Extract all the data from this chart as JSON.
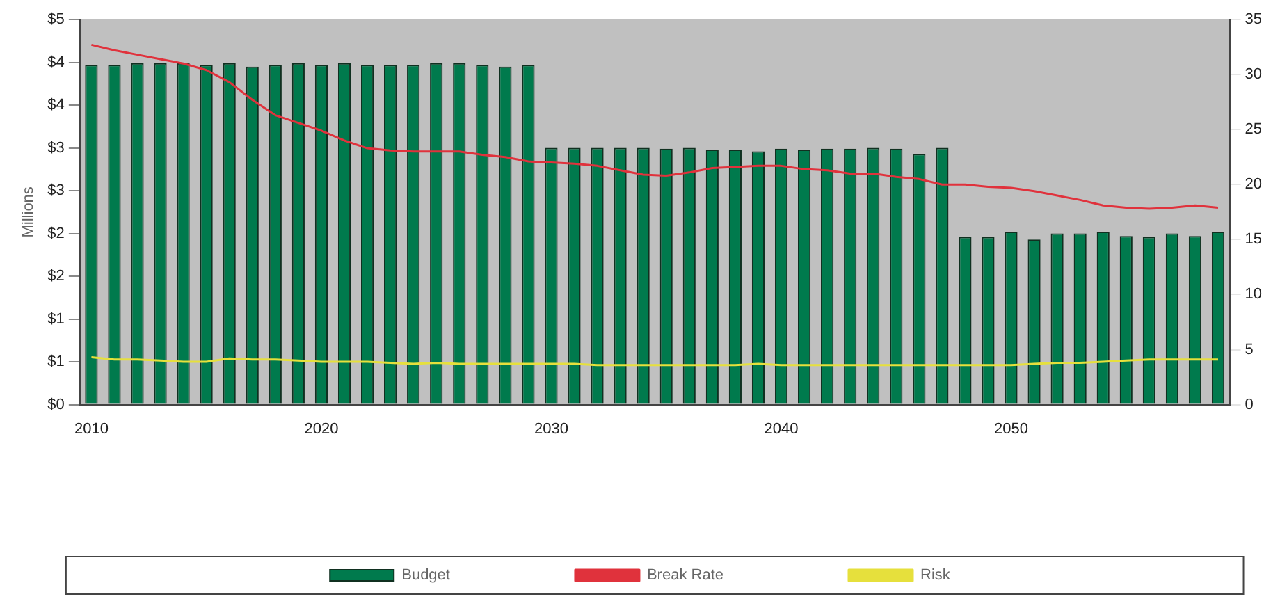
{
  "chart_data": {
    "type": "bar",
    "ylabel": "Millions",
    "categories": [
      "2010",
      null,
      null,
      null,
      null,
      null,
      null,
      null,
      null,
      null,
      "2020",
      null,
      null,
      null,
      null,
      null,
      null,
      null,
      null,
      null,
      "2030",
      null,
      null,
      null,
      null,
      null,
      null,
      null,
      null,
      null,
      "2040",
      null,
      null,
      null,
      null,
      null,
      null,
      null,
      null,
      null,
      "2050",
      null,
      null,
      null,
      null,
      null,
      null,
      null,
      null,
      null
    ],
    "series": [
      {
        "name": "Budget",
        "color": "#007a4d",
        "values": [
          3.97,
          3.97,
          3.99,
          3.99,
          3.99,
          3.97,
          3.99,
          3.95,
          3.97,
          3.99,
          3.97,
          3.99,
          3.97,
          3.97,
          3.97,
          3.99,
          3.99,
          3.97,
          3.95,
          3.97,
          3.0,
          3.0,
          3.0,
          3.0,
          3.0,
          2.99,
          3.0,
          2.98,
          2.98,
          2.96,
          2.99,
          2.98,
          2.99,
          2.99,
          3.0,
          2.99,
          2.93,
          3.0,
          1.96,
          1.96,
          2.02,
          1.93,
          2.0,
          2.0,
          2.02,
          1.97,
          1.96,
          2.0,
          1.97,
          2.02
        ]
      },
      {
        "name": "Break Rate",
        "type": "line",
        "axis": "y2",
        "color": "#e0323c",
        "values": [
          32.7,
          32.2,
          31.8,
          31.4,
          31.0,
          30.4,
          29.3,
          27.7,
          26.3,
          25.6,
          24.9,
          24.0,
          23.3,
          23.1,
          23.0,
          23.0,
          23.0,
          22.7,
          22.5,
          22.1,
          22.0,
          21.9,
          21.7,
          21.3,
          20.9,
          20.8,
          21.1,
          21.5,
          21.6,
          21.7,
          21.7,
          21.4,
          21.3,
          21.0,
          21.0,
          20.7,
          20.5,
          20.0,
          20.0,
          19.8,
          19.7,
          19.4,
          19.0,
          18.6,
          18.1,
          17.9,
          17.8,
          17.9,
          18.1,
          17.9
        ]
      },
      {
        "name": "Risk",
        "type": "line",
        "axis": "y2",
        "color": "#e6e03c",
        "values": [
          4.3,
          4.1,
          4.1,
          4.0,
          3.9,
          3.9,
          4.2,
          4.1,
          4.1,
          4.0,
          3.9,
          3.9,
          3.9,
          3.8,
          3.7,
          3.8,
          3.7,
          3.7,
          3.7,
          3.7,
          3.7,
          3.7,
          3.6,
          3.6,
          3.6,
          3.6,
          3.6,
          3.6,
          3.6,
          3.7,
          3.6,
          3.6,
          3.6,
          3.6,
          3.6,
          3.6,
          3.6,
          3.6,
          3.6,
          3.6,
          3.6,
          3.7,
          3.8,
          3.8,
          3.9,
          4.0,
          4.1,
          4.1,
          4.1,
          4.1
        ]
      }
    ],
    "ylim": [
      0,
      4.5
    ],
    "yticks": [
      {
        "value": 0,
        "label": "$0"
      },
      {
        "value": 0.5,
        "label": "$1"
      },
      {
        "value": 1,
        "label": "$1"
      },
      {
        "value": 1.5,
        "label": "$2"
      },
      {
        "value": 2,
        "label": "$2"
      },
      {
        "value": 2.5,
        "label": "$3"
      },
      {
        "value": 3,
        "label": "$3"
      },
      {
        "value": 3.5,
        "label": "$4"
      },
      {
        "value": 4,
        "label": "$4"
      },
      {
        "value": 4.5,
        "label": "$5"
      }
    ],
    "y2lim": [
      0,
      35
    ],
    "y2ticks": [
      0,
      5,
      10,
      15,
      20,
      25,
      30,
      35
    ],
    "grid": false,
    "legend": "bottom",
    "marker": "none",
    "line_style": "solid"
  }
}
